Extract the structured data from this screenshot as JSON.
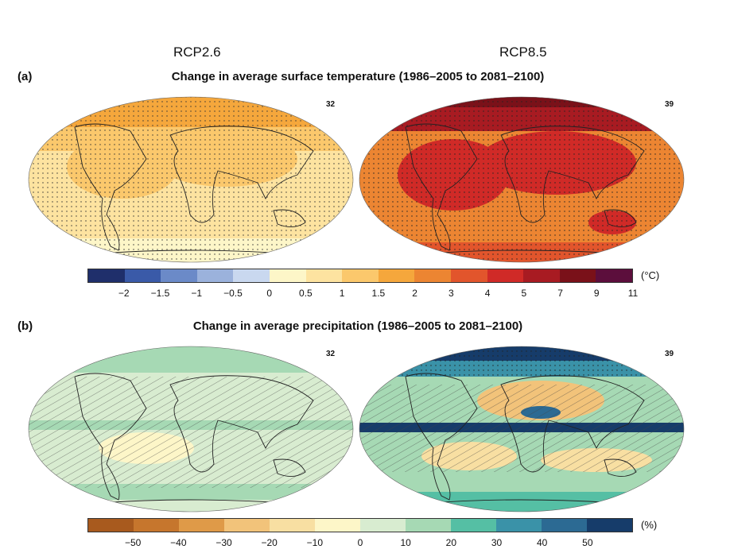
{
  "scenarios": [
    "RCP2.6",
    "RCP8.5"
  ],
  "panel_a": {
    "label": "(a)",
    "title": "Change in average surface temperature (1986–2005 to 2081–2100)",
    "model_counts": [
      "32",
      "39"
    ],
    "unit": "(°C)",
    "tick_labels": [
      "−2",
      "−1.5",
      "−1",
      "−0.5",
      "0",
      "0.5",
      "1",
      "1.5",
      "2",
      "3",
      "4",
      "5",
      "7",
      "9",
      "11"
    ],
    "colors": [
      "#1f2f6b",
      "#3a5aa8",
      "#6b8ac8",
      "#9bb2dc",
      "#c9d8ef",
      "#fdf6c8",
      "#fde3a0",
      "#fbc86c",
      "#f5a73c",
      "#ec8532",
      "#e2552c",
      "#d02a27",
      "#a81b22",
      "#7a1119",
      "#5c0e3c"
    ]
  },
  "panel_b": {
    "label": "(b)",
    "title": "Change in average precipitation (1986–2005 to 2081–2100)",
    "model_counts": [
      "32",
      "39"
    ],
    "unit": "(%)",
    "tick_labels": [
      "−50",
      "−40",
      "−30",
      "−20",
      "−10",
      "0",
      "10",
      "20",
      "30",
      "40",
      "50"
    ],
    "colors": [
      "#a85a1e",
      "#c6762d",
      "#df9a48",
      "#f2c37a",
      "#f8dfa2",
      "#fdf6c8",
      "#d8ecd0",
      "#a6d9b4",
      "#55bfa4",
      "#3a92a8",
      "#2c6a93",
      "#163c6a"
    ]
  },
  "icons": [
    "world-map-robinson"
  ]
}
